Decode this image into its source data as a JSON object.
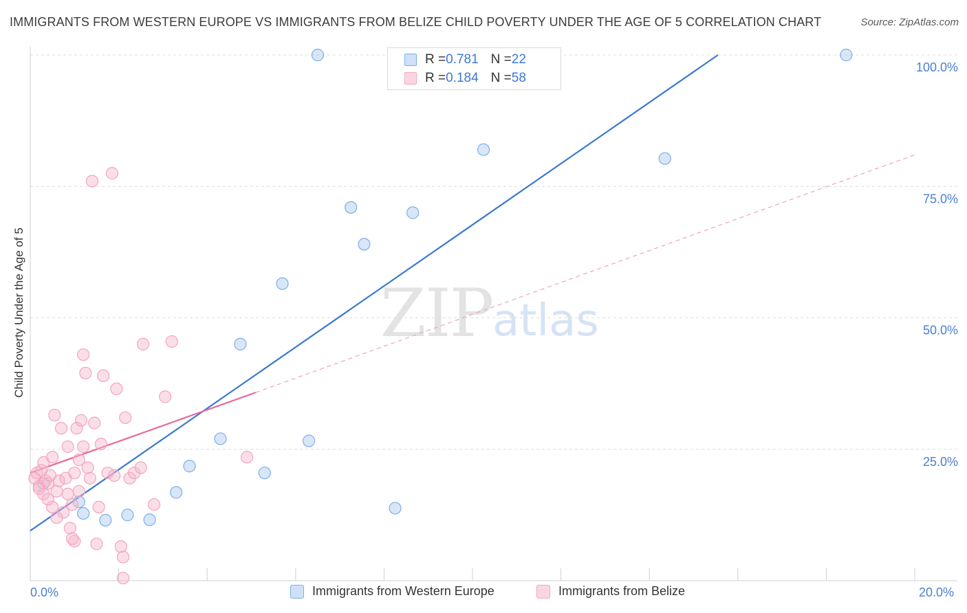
{
  "title": "IMMIGRANTS FROM WESTERN EUROPE VS IMMIGRANTS FROM BELIZE CHILD POVERTY UNDER THE AGE OF 5 CORRELATION CHART",
  "source": "Source: ZipAtlas.com",
  "watermark": {
    "zip": "ZIP",
    "atlas": "atlas"
  },
  "legend_top": [
    {
      "r_label": "R = ",
      "r_value": "0.781",
      "n_label": "N = ",
      "n_value": "22",
      "color": "#a8c8f0"
    },
    {
      "r_label": "R = ",
      "r_value": "0.184",
      "n_label": "N = ",
      "n_value": "58",
      "color": "#f7b8cb"
    }
  ],
  "chart_data": {
    "type": "scatter",
    "title": "IMMIGRANTS FROM WESTERN EUROPE VS IMMIGRANTS FROM BELIZE CHILD POVERTY UNDER THE AGE OF 5 CORRELATION CHART",
    "xlabel": "",
    "ylabel": "Child Poverty Under the Age of 5",
    "xlim": [
      0,
      20
    ],
    "ylim": [
      0,
      100
    ],
    "x_tick_labels": [
      "0.0%",
      "20.0%"
    ],
    "y_ticks": [
      25,
      50,
      75,
      100
    ],
    "y_tick_labels": [
      "25.0%",
      "50.0%",
      "75.0%",
      "100.0%"
    ],
    "grid": true,
    "legend_position": "bottom",
    "series": [
      {
        "name": "Immigrants from Western Europe",
        "color": "#7baee8",
        "line_color": "#3a78d0",
        "trend": {
          "x": [
            0,
            15.55
          ],
          "y": [
            9.5,
            100
          ]
        },
        "points": [
          {
            "x": 0.3,
            "y": 18.5
          },
          {
            "x": 1.1,
            "y": 15.0
          },
          {
            "x": 1.2,
            "y": 12.8
          },
          {
            "x": 1.7,
            "y": 11.5
          },
          {
            "x": 2.2,
            "y": 12.5
          },
          {
            "x": 2.7,
            "y": 11.6
          },
          {
            "x": 3.3,
            "y": 16.8
          },
          {
            "x": 3.6,
            "y": 21.8
          },
          {
            "x": 4.3,
            "y": 27.0
          },
          {
            "x": 4.75,
            "y": 45.0
          },
          {
            "x": 5.3,
            "y": 20.5
          },
          {
            "x": 5.7,
            "y": 56.5
          },
          {
            "x": 6.3,
            "y": 26.6
          },
          {
            "x": 6.5,
            "y": 100.0
          },
          {
            "x": 7.25,
            "y": 71.0
          },
          {
            "x": 7.55,
            "y": 64.0
          },
          {
            "x": 8.25,
            "y": 13.8
          },
          {
            "x": 8.65,
            "y": 70.0
          },
          {
            "x": 10.25,
            "y": 82.0
          },
          {
            "x": 14.35,
            "y": 80.3
          },
          {
            "x": 18.45,
            "y": 100.0
          },
          {
            "x": 9.0,
            "y": 100.0
          }
        ]
      },
      {
        "name": "Immigrants from Belize",
        "color": "#f5a3bd",
        "line_color": "#e8679a",
        "trend": {
          "x": [
            0,
            5.1
          ],
          "y": [
            20.5,
            35.8
          ]
        },
        "trend_extended": {
          "x": [
            5.1,
            20
          ],
          "y": [
            35.8,
            81.0
          ]
        },
        "points": [
          {
            "x": 0.1,
            "y": 19.5
          },
          {
            "x": 0.15,
            "y": 20.5
          },
          {
            "x": 0.2,
            "y": 18.0
          },
          {
            "x": 0.25,
            "y": 21.0
          },
          {
            "x": 0.3,
            "y": 16.5
          },
          {
            "x": 0.3,
            "y": 22.5
          },
          {
            "x": 0.35,
            "y": 19.0
          },
          {
            "x": 0.4,
            "y": 18.5
          },
          {
            "x": 0.45,
            "y": 20.0
          },
          {
            "x": 0.5,
            "y": 14.0
          },
          {
            "x": 0.5,
            "y": 23.5
          },
          {
            "x": 0.55,
            "y": 31.5
          },
          {
            "x": 0.6,
            "y": 17.0
          },
          {
            "x": 0.65,
            "y": 19.0
          },
          {
            "x": 0.7,
            "y": 29.0
          },
          {
            "x": 0.75,
            "y": 13.0
          },
          {
            "x": 0.8,
            "y": 19.5
          },
          {
            "x": 0.85,
            "y": 25.5
          },
          {
            "x": 0.85,
            "y": 16.5
          },
          {
            "x": 0.9,
            "y": 10.0
          },
          {
            "x": 0.95,
            "y": 14.5
          },
          {
            "x": 1.0,
            "y": 20.5
          },
          {
            "x": 1.0,
            "y": 7.5
          },
          {
            "x": 1.05,
            "y": 29.0
          },
          {
            "x": 1.1,
            "y": 17.0
          },
          {
            "x": 1.15,
            "y": 30.5
          },
          {
            "x": 1.2,
            "y": 25.5
          },
          {
            "x": 1.2,
            "y": 43.0
          },
          {
            "x": 1.25,
            "y": 39.5
          },
          {
            "x": 1.3,
            "y": 21.5
          },
          {
            "x": 1.35,
            "y": 19.5
          },
          {
            "x": 1.4,
            "y": 76.0
          },
          {
            "x": 1.45,
            "y": 30.0
          },
          {
            "x": 1.5,
            "y": 7.0
          },
          {
            "x": 1.55,
            "y": 14.0
          },
          {
            "x": 1.6,
            "y": 26.0
          },
          {
            "x": 1.65,
            "y": 39.0
          },
          {
            "x": 1.75,
            "y": 20.5
          },
          {
            "x": 1.85,
            "y": 77.5
          },
          {
            "x": 1.9,
            "y": 20.0
          },
          {
            "x": 1.95,
            "y": 36.5
          },
          {
            "x": 2.05,
            "y": 6.5
          },
          {
            "x": 2.1,
            "y": 4.5
          },
          {
            "x": 2.1,
            "y": 0.5
          },
          {
            "x": 2.15,
            "y": 31.0
          },
          {
            "x": 2.25,
            "y": 19.5
          },
          {
            "x": 2.35,
            "y": 20.5
          },
          {
            "x": 2.5,
            "y": 21.5
          },
          {
            "x": 2.55,
            "y": 45.0
          },
          {
            "x": 2.8,
            "y": 14.5
          },
          {
            "x": 3.05,
            "y": 35.0
          },
          {
            "x": 3.2,
            "y": 45.5
          },
          {
            "x": 4.9,
            "y": 23.5
          },
          {
            "x": 0.2,
            "y": 17.5
          },
          {
            "x": 0.6,
            "y": 12.0
          },
          {
            "x": 0.4,
            "y": 15.5
          },
          {
            "x": 1.1,
            "y": 23.0
          },
          {
            "x": 0.95,
            "y": 8.0
          }
        ]
      }
    ]
  },
  "legend_bottom": [
    {
      "label": "Immigrants from Western Europe",
      "color": "#a8c8f0"
    },
    {
      "label": "Immigrants from Belize",
      "color": "#f7b8cb"
    }
  ]
}
